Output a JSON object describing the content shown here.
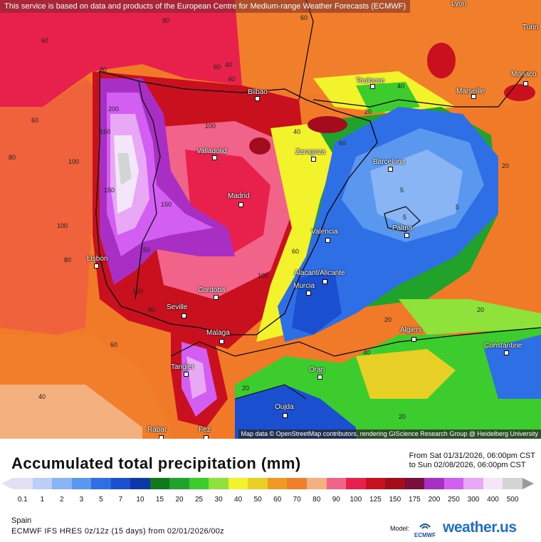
{
  "banner": "This service is based on data and products of the European Centre for Medium-range Weather Forecasts (ECMWF)",
  "attribution": "Map data © OpenStreetMap contributors, rendering GIScience Research Group @ Heidelberg University",
  "cities": [
    "Bilbao",
    "Toulouse",
    "Marseille",
    "Monaco",
    "Turin",
    "Lyon",
    "Valladolid",
    "Zaragoza",
    "Barcelona",
    "Madrid",
    "Valencia",
    "Palma",
    "Lisbon",
    "Alacant/Alicante",
    "Murcia",
    "Cordoba",
    "Seville",
    "Malaga",
    "Algiers",
    "Constantine",
    "Tangier",
    "Oran",
    "Oujda",
    "Rabat",
    "Fez"
  ],
  "contour_labels": [
    "80",
    "80",
    "60",
    "60",
    "60",
    "40",
    "40",
    "20",
    "20",
    "100",
    "100",
    "200",
    "150",
    "150",
    "5",
    "5",
    "5",
    "40",
    "60",
    "80",
    "100",
    "100",
    "150",
    "60",
    "20",
    "20",
    "40",
    "60",
    "80",
    "40",
    "40",
    "20",
    "20",
    "80",
    "60",
    "150",
    "150"
  ],
  "title": "Accumulated total precipitation (mm)",
  "date_from": "From Sat 01/31/2026, 06:00pm CST",
  "date_to": "to Sun 02/08/2026, 06:00pm CST",
  "legend": {
    "ticks": [
      "0.1",
      "1",
      "2",
      "3",
      "5",
      "7",
      "10",
      "15",
      "20",
      "25",
      "30",
      "40",
      "50",
      "60",
      "70",
      "80",
      "90",
      "100",
      "125",
      "150",
      "175",
      "200",
      "250",
      "300",
      "400",
      "500"
    ],
    "colors": [
      "#e4e0f4",
      "#b9cff8",
      "#8ab5f5",
      "#5a98f0",
      "#2e6fe6",
      "#1a4fd0",
      "#0d38a8",
      "#0f7a1c",
      "#21a32b",
      "#3ccc2e",
      "#8fe23a",
      "#f3f32c",
      "#e8cf25",
      "#f09a22",
      "#f07e2a",
      "#f4b07e",
      "#f2638a",
      "#e8204c",
      "#c8101e",
      "#a30c1c",
      "#7a0f3c",
      "#a82ec4",
      "#d25ef2",
      "#e8a8f6",
      "#f3e6fa",
      "#d4d4d4"
    ]
  },
  "region": "Spain",
  "model_line": "ECMWF IFS HRES 0z/12z (15 days) from  02/01/2026/00z",
  "model_label": "Model:",
  "ecmwf_label": "ECMWF",
  "brand": "weather.us"
}
